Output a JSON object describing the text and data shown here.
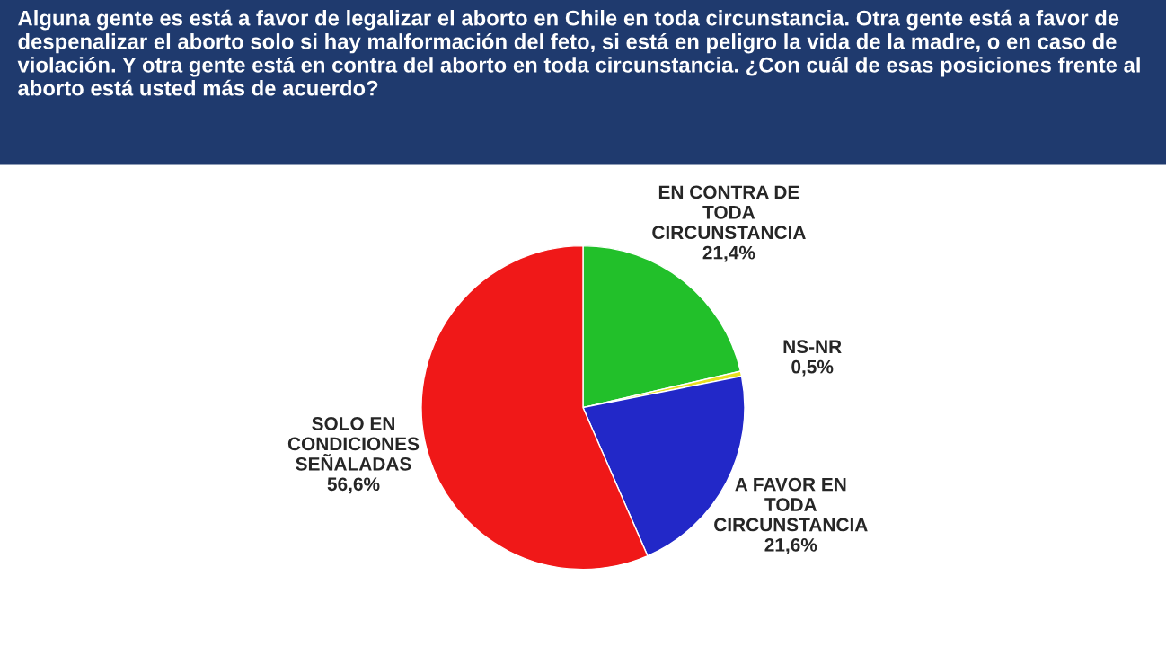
{
  "chart_data": {
    "type": "pie",
    "title": "Alguna gente es está a favor de legalizar el aborto en Chile en toda circunstancia. Otra gente está a favor de despenalizar el aborto solo si hay malformación del feto, si está en peligro la vida de la madre, o en caso de violación. Y otra gente está en contra del aborto en toda circunstancia. ¿Con cuál de esas posiciones frente al aborto está usted más de acuerdo?",
    "categories": [
      "EN CONTRA DE\nTODA\nCIRCUNSTANCIA",
      "NS-NR",
      "A FAVOR EN\nTODA\nCIRCUNSTANCIA",
      "SOLO EN\nCONDICIONES\nSEÑALADAS"
    ],
    "values": [
      21.4,
      0.5,
      21.6,
      56.6
    ],
    "value_labels": [
      "21,4%",
      "0,5%",
      "21,6%",
      "56,6%"
    ],
    "colors": [
      "#22c02a",
      "#e8e020",
      "#2228c8",
      "#f01818"
    ],
    "legend": false
  }
}
